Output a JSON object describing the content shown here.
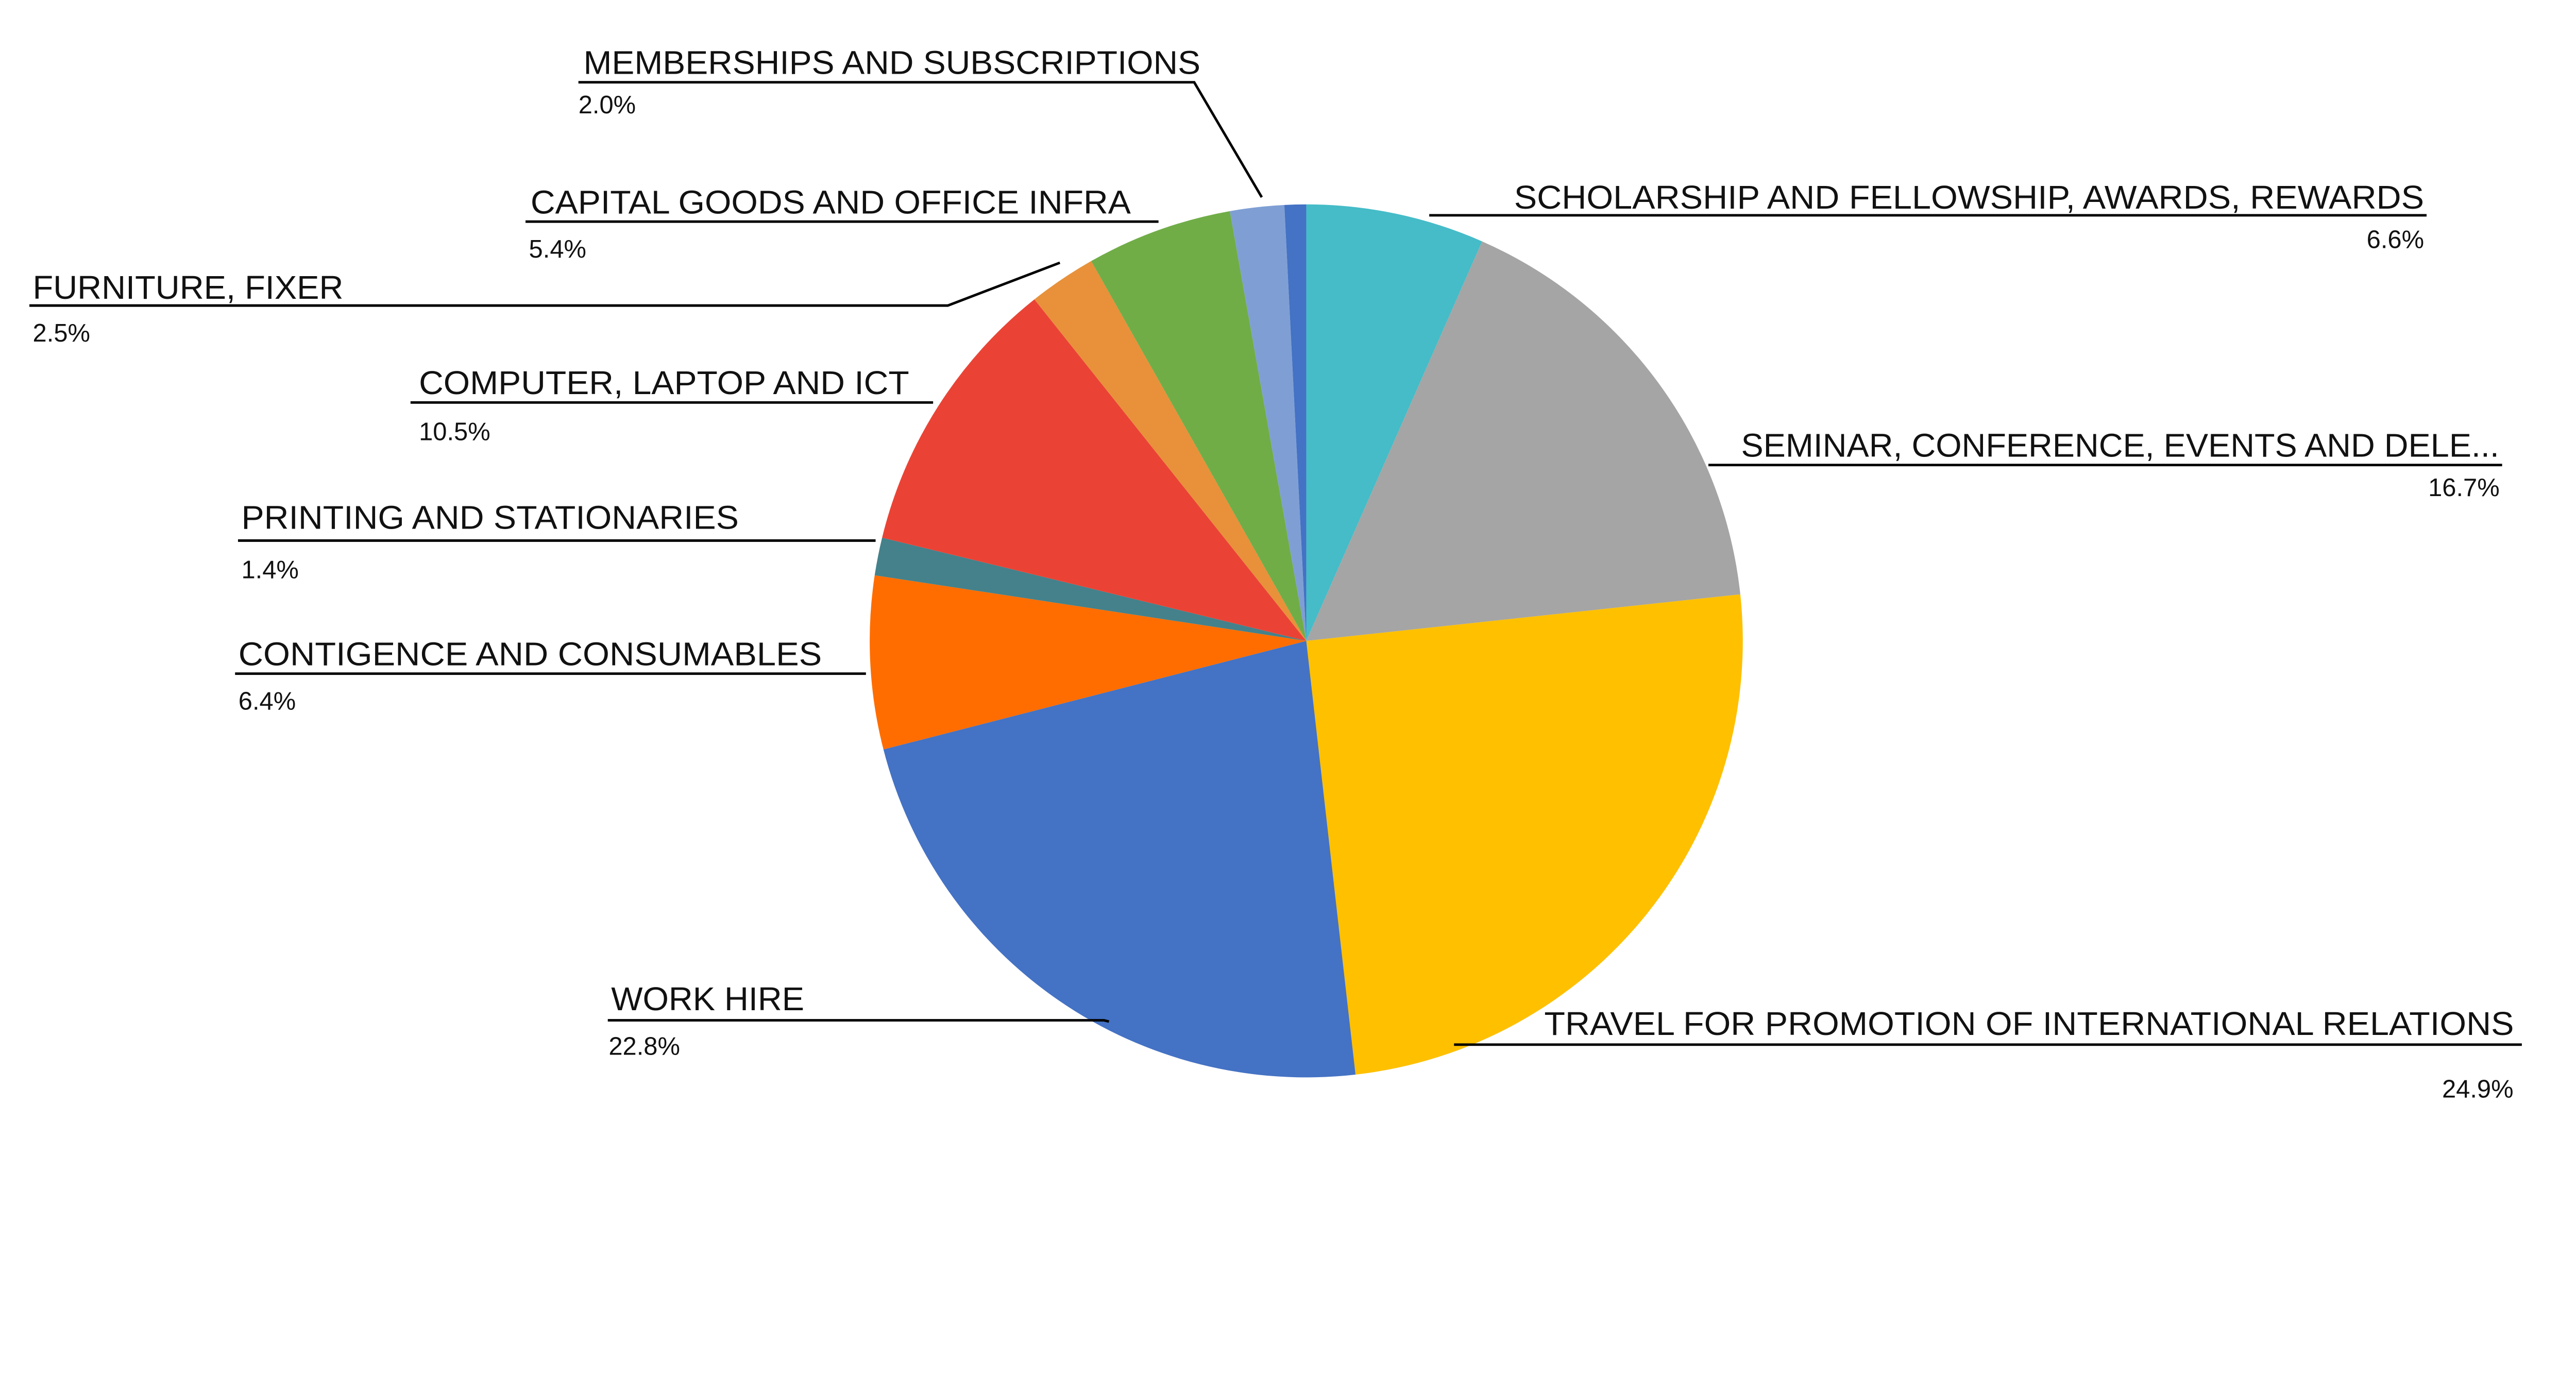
{
  "chart_data": {
    "type": "pie",
    "start_angle": "12 o'clock",
    "direction": "clockwise",
    "legend": "none (callout labels)",
    "slices": [
      {
        "label": "SCHOLARSHIP AND FELLOWSHIP, AWARDS, REWARDS",
        "value": 6.6,
        "display": "6.6%",
        "color": "#45BCC8"
      },
      {
        "label": "SEMINAR, CONFERENCE, EVENTS AND DELE...",
        "value": 16.7,
        "display": "16.7%",
        "color": "#A5A5A5"
      },
      {
        "label": "TRAVEL FOR PROMOTION OF INTERNATIONAL RELATIONS",
        "value": 24.9,
        "display": "24.9%",
        "color": "#FFC000"
      },
      {
        "label": "WORK HIRE",
        "value": 22.8,
        "display": "22.8%",
        "color": "#4472C4"
      },
      {
        "label": "CONTIGENCE AND CONSUMABLES",
        "value": 6.4,
        "display": "6.4%",
        "color": "#FF6D00"
      },
      {
        "label": "PRINTING AND STATIONARIES",
        "value": 1.4,
        "display": "1.4%",
        "color": "#44818B"
      },
      {
        "label": "COMPUTER, LAPTOP AND ICT",
        "value": 10.5,
        "display": "10.5%",
        "color": "#EA4335"
      },
      {
        "label": "FURNITURE, FIXER",
        "value": 2.5,
        "display": "2.5%",
        "color": "#E8913A"
      },
      {
        "label": "CAPITAL GOODS AND OFFICE INFRA",
        "value": 5.4,
        "display": "5.4%",
        "color": "#70AD47"
      },
      {
        "label": "MEMBERSHIPS AND SUBSCRIPTIONS",
        "value": 2.0,
        "display": "2.0%",
        "color": "#7F9FD4"
      },
      {
        "label": "",
        "value": 0.8,
        "display": "",
        "color": "#4472C4"
      }
    ]
  }
}
